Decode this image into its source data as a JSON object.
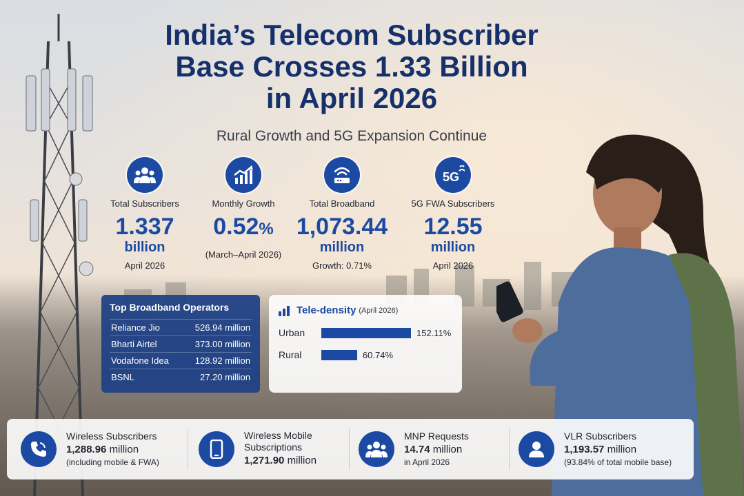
{
  "headline": {
    "line1": "India’s Telecom Subscriber",
    "line2": "Base Crosses 1.33 Billion",
    "line3": "in April 2026"
  },
  "subtitle": "Rural Growth and 5G Expansion Continue",
  "stats": [
    {
      "icon": "users-icon",
      "label": "Total Subscribers",
      "value": "1.337",
      "unit": "billion",
      "note": "April 2026"
    },
    {
      "icon": "growth-chart-icon",
      "label": "Monthly Growth",
      "value": "0.52",
      "unit": "%",
      "note": "(March–April 2026)"
    },
    {
      "icon": "router-icon",
      "label": "Total Broadband",
      "value": "1,073.44",
      "unit": "million",
      "note": "Growth: 0.71%"
    },
    {
      "icon": "5g-icon",
      "label": "5G FWA Subscribers",
      "value": "12.55",
      "unit": "million",
      "note": "April 2026"
    }
  ],
  "operators": {
    "title": "Top Broadband Operators",
    "rows": [
      {
        "name": "Reliance Jio",
        "value": "526.94 million"
      },
      {
        "name": "Bharti Airtel",
        "value": "373.00 million"
      },
      {
        "name": "Vodafone Idea",
        "value": "128.92 million"
      },
      {
        "name": "BSNL",
        "value": "27.20 million"
      }
    ]
  },
  "teledensity": {
    "title": "Tele-density",
    "period": "(April 2026)",
    "rows": [
      {
        "label": "Urban",
        "value": "152.11%",
        "percent": 152.11
      },
      {
        "label": "Rural",
        "value": "60.74%",
        "percent": 60.74
      }
    ]
  },
  "bottom": [
    {
      "icon": "phone-icon",
      "title": "Wireless Subscribers",
      "value": "1,288.96",
      "unit": "million",
      "note": "(including mobile & FWA)"
    },
    {
      "icon": "smartphone-icon",
      "title": "Wireless Mobile Subscriptions",
      "value": "1,271.90",
      "unit": "million",
      "note": ""
    },
    {
      "icon": "group-icon",
      "title": "MNP Requests",
      "value": "14.74",
      "unit": "million",
      "note": "in April 2026"
    },
    {
      "icon": "user-icon",
      "title": "VLR Subscribers",
      "value": "1,193.57",
      "unit": "million",
      "note": "(93.84% of total mobile base)"
    }
  ],
  "colors": {
    "accent": "#1c4aa3",
    "title": "#15306b"
  }
}
